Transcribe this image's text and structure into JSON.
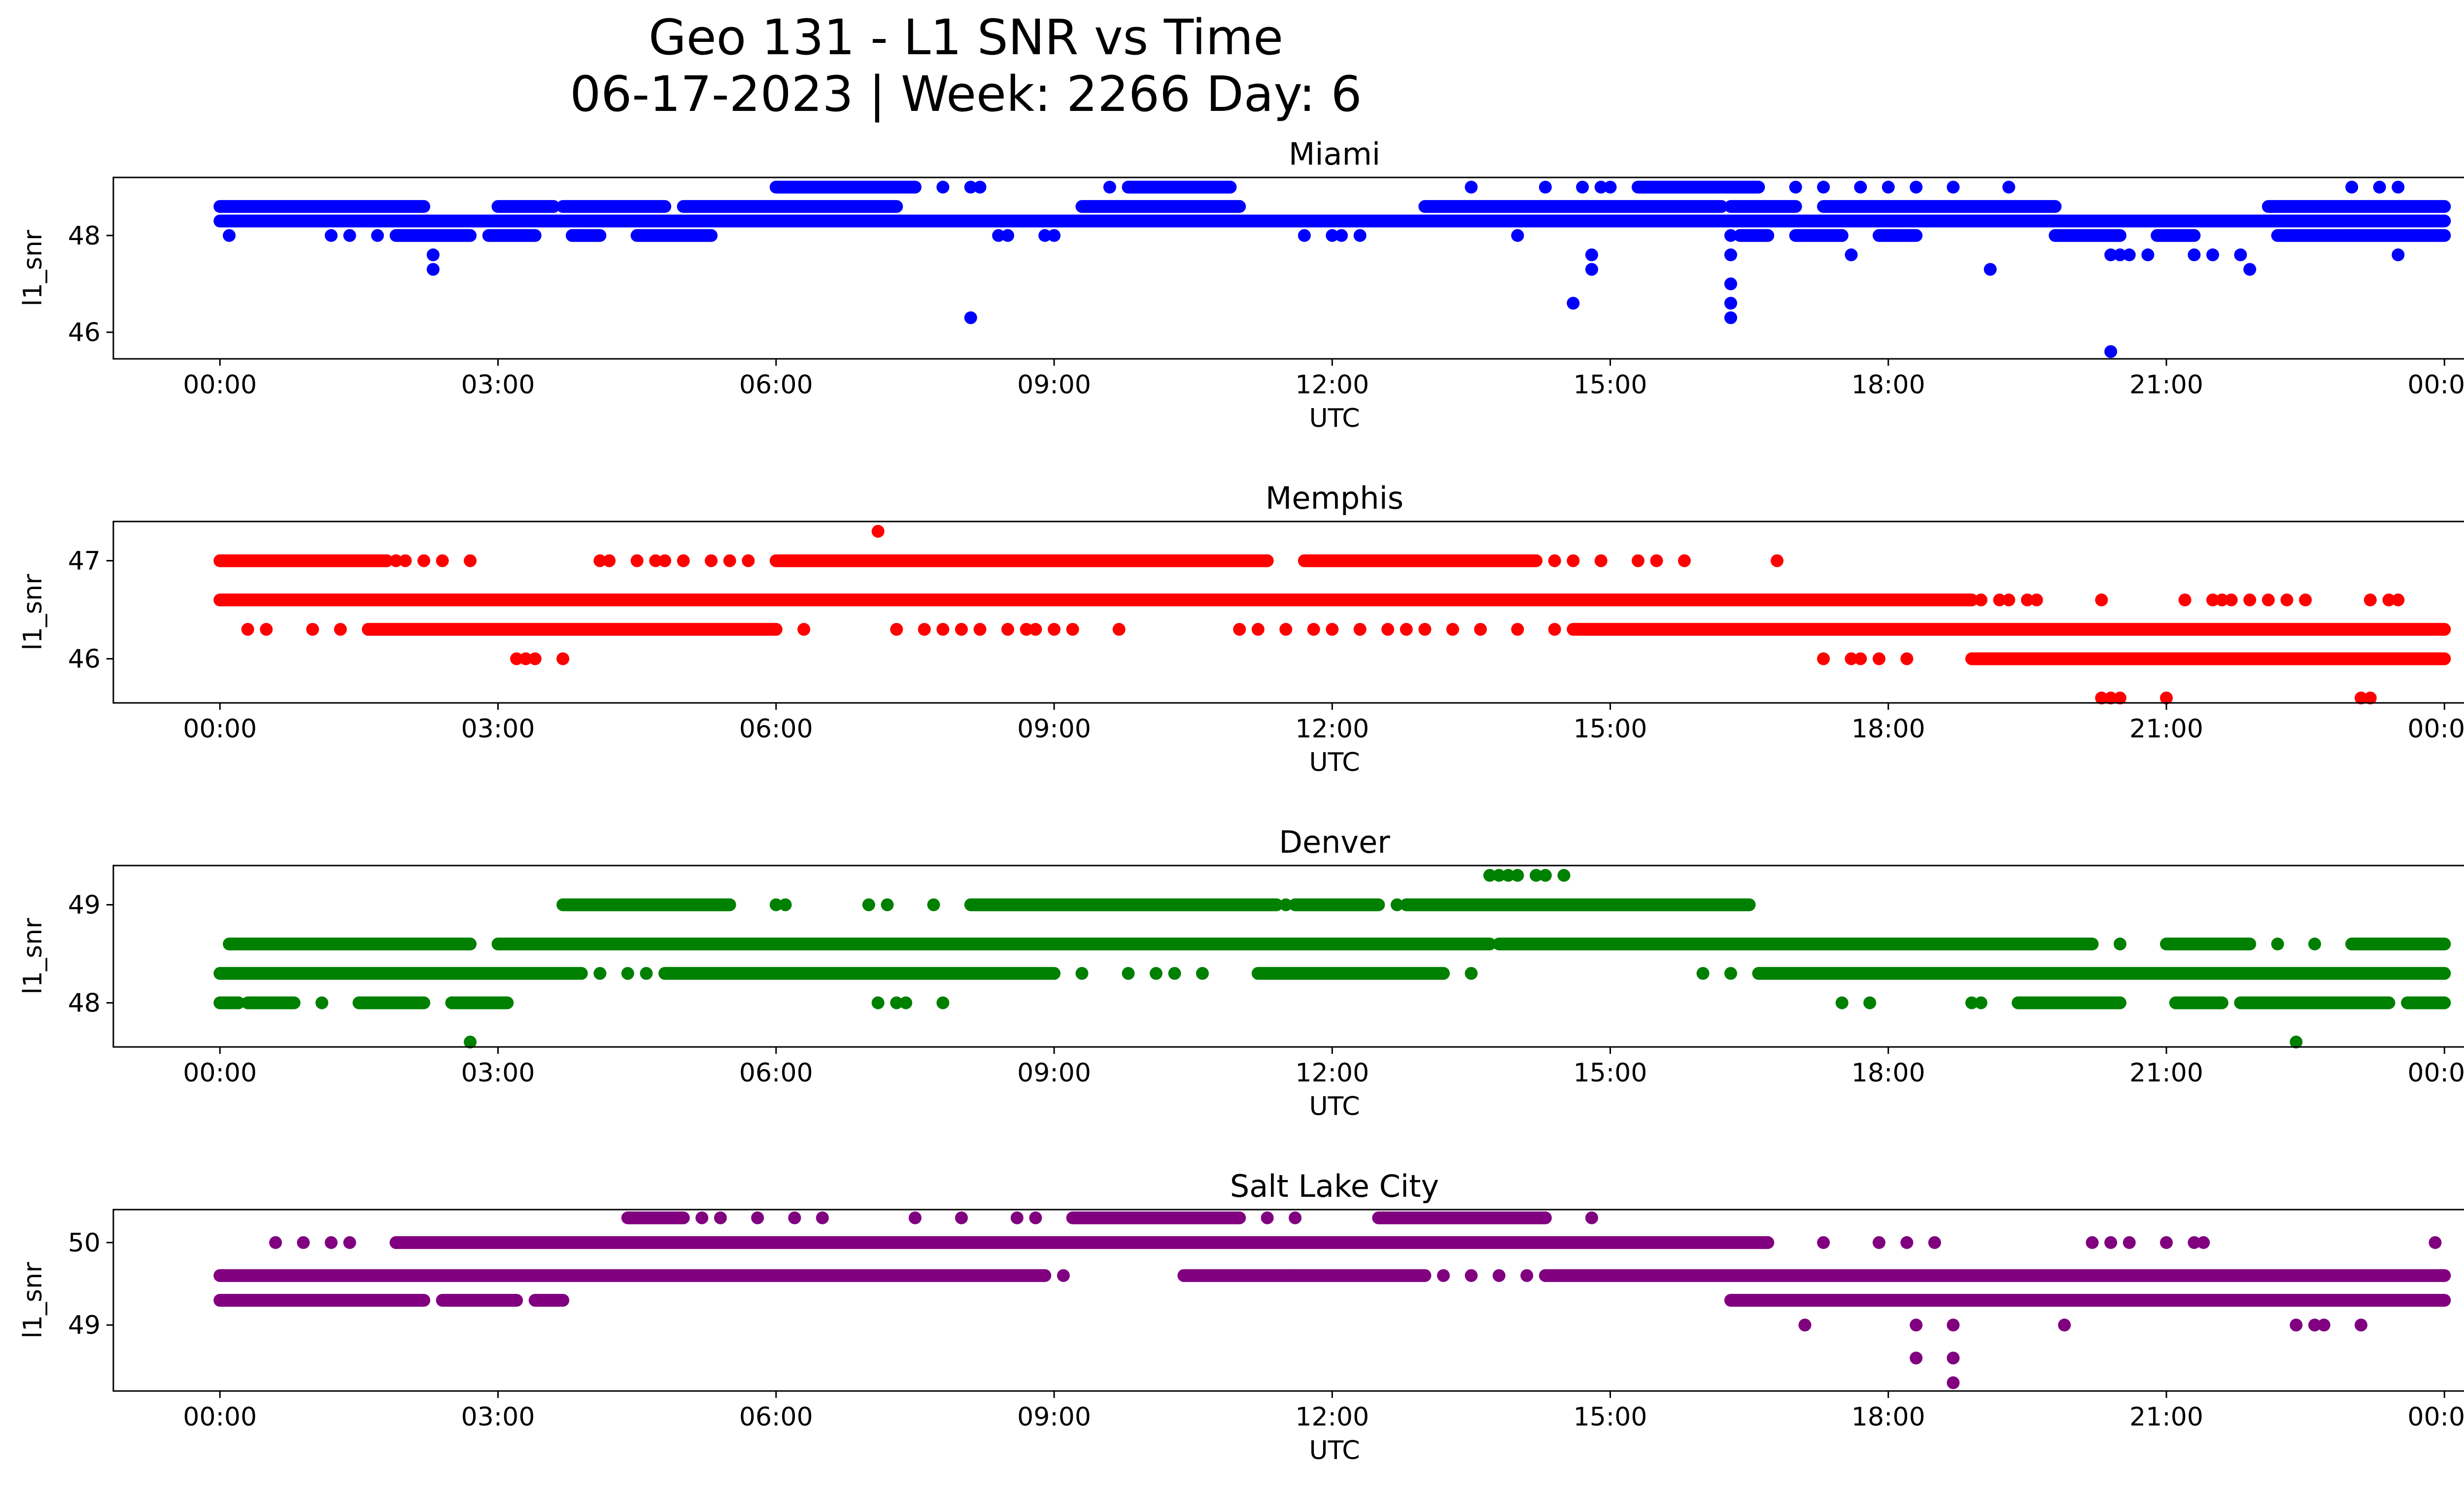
{
  "figure": {
    "title_line1": "Geo 131 - L1 SNR vs Time",
    "title_line2": "06-17-2023 | Week: 2266 Day: 6"
  },
  "chart_data": [
    {
      "type": "scatter",
      "title": "Miami",
      "xlabel": "UTC",
      "ylabel": "l1_snr",
      "color": "#0000ff",
      "xlim_hours": [
        -1.15,
        25.2
      ],
      "ylim": [
        45.45,
        49.2
      ],
      "x_ticks": [
        "00:00",
        "03:00",
        "06:00",
        "09:00",
        "12:00",
        "15:00",
        "18:00",
        "21:00",
        "00:00"
      ],
      "y_ticks": [
        46,
        48
      ],
      "bands": [
        {
          "y": 48.3,
          "segments": [
            [
              0.0,
              24.0
            ]
          ]
        },
        {
          "y": 48.6,
          "segments": [
            [
              0.0,
              2.2
            ],
            [
              3.0,
              3.6
            ],
            [
              3.7,
              4.8
            ],
            [
              5.0,
              6.2
            ],
            [
              6.2,
              7.3
            ],
            [
              9.3,
              11.0
            ],
            [
              13.0,
              16.2
            ],
            [
              16.3,
              17.0
            ],
            [
              17.3,
              19.8
            ],
            [
              22.1,
              24.0
            ]
          ]
        },
        {
          "y": 48.0,
          "segments": [
            [
              1.9,
              2.7
            ],
            [
              2.9,
              3.4
            ],
            [
              3.8,
              4.1
            ],
            [
              4.5,
              5.3
            ],
            [
              16.4,
              16.7
            ],
            [
              17.0,
              17.5
            ],
            [
              17.9,
              18.3
            ],
            [
              19.8,
              20.5
            ],
            [
              20.9,
              21.3
            ],
            [
              22.2,
              24.0
            ]
          ]
        },
        {
          "y": 49.0,
          "segments": [
            [
              6.0,
              7.5
            ],
            [
              9.8,
              10.9
            ],
            [
              15.3,
              16.6
            ]
          ]
        }
      ],
      "points": [
        [
          0.1,
          48.0
        ],
        [
          1.2,
          48.0
        ],
        [
          1.4,
          48.0
        ],
        [
          1.7,
          48.0
        ],
        [
          3.3,
          48.0
        ],
        [
          3.9,
          48.0
        ],
        [
          8.4,
          48.0
        ],
        [
          8.5,
          48.0
        ],
        [
          8.9,
          48.0
        ],
        [
          9.0,
          48.0
        ],
        [
          11.7,
          48.0
        ],
        [
          12.0,
          48.0
        ],
        [
          12.1,
          48.0
        ],
        [
          12.3,
          48.0
        ],
        [
          14.0,
          48.0
        ],
        [
          16.3,
          48.0
        ],
        [
          17.5,
          48.0
        ],
        [
          18.0,
          48.0
        ],
        [
          23.7,
          48.0
        ],
        [
          23.0,
          48.0
        ],
        [
          2.3,
          47.6
        ],
        [
          2.3,
          47.3
        ],
        [
          8.1,
          46.3
        ],
        [
          14.6,
          46.6
        ],
        [
          14.8,
          47.6
        ],
        [
          14.8,
          47.3
        ],
        [
          16.3,
          47.6
        ],
        [
          16.3,
          47.0
        ],
        [
          16.3,
          46.6
        ],
        [
          16.3,
          46.3
        ],
        [
          17.6,
          47.6
        ],
        [
          19.1,
          47.3
        ],
        [
          20.4,
          47.6
        ],
        [
          20.5,
          47.6
        ],
        [
          20.6,
          47.6
        ],
        [
          20.8,
          47.6
        ],
        [
          21.3,
          47.6
        ],
        [
          21.5,
          47.6
        ],
        [
          21.8,
          47.6
        ],
        [
          21.9,
          47.3
        ],
        [
          23.5,
          47.6
        ],
        [
          20.4,
          45.6
        ],
        [
          7.8,
          49.0
        ],
        [
          8.1,
          49.0
        ],
        [
          8.2,
          49.0
        ],
        [
          9.6,
          49.0
        ],
        [
          13.5,
          49.0
        ],
        [
          14.3,
          49.0
        ],
        [
          14.7,
          49.0
        ],
        [
          14.9,
          49.0
        ],
        [
          15.0,
          49.0
        ],
        [
          17.0,
          49.0
        ],
        [
          17.3,
          49.0
        ],
        [
          17.7,
          49.0
        ],
        [
          18.0,
          49.0
        ],
        [
          18.3,
          49.0
        ],
        [
          18.7,
          49.0
        ],
        [
          19.3,
          49.0
        ],
        [
          23.0,
          49.0
        ],
        [
          23.3,
          49.0
        ],
        [
          23.5,
          49.0
        ]
      ]
    },
    {
      "type": "scatter",
      "title": "Memphis",
      "xlabel": "UTC",
      "ylabel": "l1_snr",
      "color": "#ff0000",
      "xlim_hours": [
        -1.15,
        25.2
      ],
      "ylim": [
        45.55,
        47.4
      ],
      "x_ticks": [
        "00:00",
        "03:00",
        "06:00",
        "09:00",
        "12:00",
        "15:00",
        "18:00",
        "21:00",
        "00:00"
      ],
      "y_ticks": [
        46,
        47
      ],
      "bands": [
        {
          "y": 46.6,
          "segments": [
            [
              0.0,
              18.9
            ]
          ]
        },
        {
          "y": 47.0,
          "segments": [
            [
              0.0,
              1.8
            ],
            [
              6.0,
              11.3
            ],
            [
              11.7,
              14.2
            ]
          ]
        },
        {
          "y": 46.3,
          "segments": [
            [
              1.6,
              6.0
            ],
            [
              14.6,
              24.0
            ]
          ]
        },
        {
          "y": 46.0,
          "segments": [
            [
              18.9,
              24.0
            ]
          ]
        }
      ],
      "points": [
        [
          1.9,
          47.0
        ],
        [
          2.0,
          47.0
        ],
        [
          2.2,
          47.0
        ],
        [
          2.4,
          47.0
        ],
        [
          2.7,
          47.0
        ],
        [
          4.1,
          47.0
        ],
        [
          4.2,
          47.0
        ],
        [
          4.5,
          47.0
        ],
        [
          4.7,
          47.0
        ],
        [
          4.8,
          47.0
        ],
        [
          5.0,
          47.0
        ],
        [
          5.3,
          47.0
        ],
        [
          5.5,
          47.0
        ],
        [
          5.7,
          47.0
        ],
        [
          14.4,
          47.0
        ],
        [
          14.6,
          47.0
        ],
        [
          14.9,
          47.0
        ],
        [
          15.3,
          47.0
        ],
        [
          15.5,
          47.0
        ],
        [
          15.8,
          47.0
        ],
        [
          16.8,
          47.0
        ],
        [
          7.1,
          47.3
        ],
        [
          0.3,
          46.3
        ],
        [
          0.5,
          46.3
        ],
        [
          1.0,
          46.3
        ],
        [
          1.3,
          46.3
        ],
        [
          6.3,
          46.3
        ],
        [
          7.3,
          46.3
        ],
        [
          7.6,
          46.3
        ],
        [
          7.8,
          46.3
        ],
        [
          8.0,
          46.3
        ],
        [
          8.2,
          46.3
        ],
        [
          8.5,
          46.3
        ],
        [
          8.7,
          46.3
        ],
        [
          8.8,
          46.3
        ],
        [
          9.0,
          46.3
        ],
        [
          9.2,
          46.3
        ],
        [
          9.7,
          46.3
        ],
        [
          11.0,
          46.3
        ],
        [
          11.2,
          46.3
        ],
        [
          11.5,
          46.3
        ],
        [
          11.8,
          46.3
        ],
        [
          12.0,
          46.3
        ],
        [
          12.3,
          46.3
        ],
        [
          12.6,
          46.3
        ],
        [
          12.8,
          46.3
        ],
        [
          13.0,
          46.3
        ],
        [
          13.3,
          46.3
        ],
        [
          13.6,
          46.3
        ],
        [
          14.0,
          46.3
        ],
        [
          14.4,
          46.3
        ],
        [
          3.2,
          46.0
        ],
        [
          3.3,
          46.0
        ],
        [
          3.4,
          46.0
        ],
        [
          3.7,
          46.0
        ],
        [
          17.3,
          46.0
        ],
        [
          17.6,
          46.0
        ],
        [
          17.7,
          46.0
        ],
        [
          17.9,
          46.0
        ],
        [
          18.2,
          46.0
        ],
        [
          19.0,
          46.6
        ],
        [
          19.2,
          46.6
        ],
        [
          19.3,
          46.6
        ],
        [
          19.5,
          46.6
        ],
        [
          19.6,
          46.6
        ],
        [
          20.3,
          46.6
        ],
        [
          21.2,
          46.6
        ],
        [
          21.5,
          46.6
        ],
        [
          21.6,
          46.6
        ],
        [
          21.7,
          46.6
        ],
        [
          21.9,
          46.6
        ],
        [
          22.1,
          46.6
        ],
        [
          22.3,
          46.6
        ],
        [
          22.5,
          46.6
        ],
        [
          23.2,
          46.6
        ],
        [
          23.4,
          46.6
        ],
        [
          23.5,
          46.6
        ],
        [
          20.3,
          45.6
        ],
        [
          20.4,
          45.6
        ],
        [
          20.5,
          45.6
        ],
        [
          21.0,
          45.6
        ],
        [
          23.1,
          45.6
        ],
        [
          23.2,
          45.6
        ]
      ]
    },
    {
      "type": "scatter",
      "title": "Denver",
      "xlabel": "UTC",
      "ylabel": "l1_snr",
      "color": "#008000",
      "xlim_hours": [
        -1.15,
        25.2
      ],
      "ylim": [
        47.55,
        49.4
      ],
      "x_ticks": [
        "00:00",
        "03:00",
        "06:00",
        "09:00",
        "12:00",
        "15:00",
        "18:00",
        "21:00",
        "00:00"
      ],
      "y_ticks": [
        48,
        49
      ],
      "bands": [
        {
          "y": 48.6,
          "segments": [
            [
              0.1,
              2.7
            ],
            [
              3.0,
              13.7
            ],
            [
              13.8,
              20.2
            ],
            [
              21.0,
              21.9
            ],
            [
              23.0,
              24.0
            ]
          ]
        },
        {
          "y": 48.3,
          "segments": [
            [
              0.0,
              3.9
            ],
            [
              4.8,
              9.0
            ],
            [
              11.2,
              13.2
            ],
            [
              16.6,
              24.0
            ]
          ]
        },
        {
          "y": 49.0,
          "segments": [
            [
              3.7,
              5.5
            ],
            [
              8.1,
              11.4
            ],
            [
              11.6,
              12.5
            ],
            [
              12.8,
              16.5
            ]
          ]
        },
        {
          "y": 48.0,
          "segments": [
            [
              0.0,
              0.2
            ],
            [
              0.3,
              0.8
            ],
            [
              1.5,
              2.2
            ],
            [
              2.5,
              3.1
            ],
            [
              19.4,
              20.5
            ],
            [
              21.1,
              21.6
            ],
            [
              21.8,
              22.4
            ],
            [
              22.4,
              23.4
            ],
            [
              23.6,
              24.0
            ]
          ]
        }
      ],
      "points": [
        [
          1.1,
          48.0
        ],
        [
          7.1,
          48.0
        ],
        [
          7.3,
          48.0
        ],
        [
          7.4,
          48.0
        ],
        [
          7.8,
          48.0
        ],
        [
          17.5,
          48.0
        ],
        [
          17.8,
          48.0
        ],
        [
          18.9,
          48.0
        ],
        [
          19.0,
          48.0
        ],
        [
          2.7,
          47.6
        ],
        [
          22.4,
          47.6
        ],
        [
          4.1,
          48.3
        ],
        [
          4.4,
          48.3
        ],
        [
          4.6,
          48.3
        ],
        [
          9.3,
          48.3
        ],
        [
          9.8,
          48.3
        ],
        [
          10.1,
          48.3
        ],
        [
          10.3,
          48.3
        ],
        [
          10.6,
          48.3
        ],
        [
          13.5,
          48.3
        ],
        [
          16.0,
          48.3
        ],
        [
          16.3,
          48.3
        ],
        [
          6.0,
          49.0
        ],
        [
          6.1,
          49.0
        ],
        [
          7.0,
          49.0
        ],
        [
          7.2,
          49.0
        ],
        [
          7.7,
          49.0
        ],
        [
          11.5,
          49.0
        ],
        [
          12.7,
          49.0
        ],
        [
          20.5,
          48.6
        ],
        [
          22.2,
          48.6
        ],
        [
          22.6,
          48.6
        ],
        [
          13.7,
          49.3
        ],
        [
          13.8,
          49.3
        ],
        [
          13.9,
          49.3
        ],
        [
          14.0,
          49.3
        ],
        [
          14.2,
          49.3
        ],
        [
          14.3,
          49.3
        ],
        [
          14.5,
          49.3
        ]
      ]
    },
    {
      "type": "scatter",
      "title": "Salt Lake City",
      "xlabel": "UTC",
      "ylabel": "l1_snr",
      "color": "#800080",
      "xlim_hours": [
        -1.15,
        25.2
      ],
      "ylim": [
        48.2,
        50.4
      ],
      "x_ticks": [
        "00:00",
        "03:00",
        "06:00",
        "09:00",
        "12:00",
        "15:00",
        "18:00",
        "21:00",
        "00:00"
      ],
      "y_ticks": [
        49,
        50
      ],
      "bands": [
        {
          "y": 49.6,
          "segments": [
            [
              0.0,
              8.9
            ],
            [
              10.4,
              13.0
            ],
            [
              14.3,
              24.0
            ]
          ]
        },
        {
          "y": 49.3,
          "segments": [
            [
              0.0,
              2.2
            ],
            [
              2.4,
              3.2
            ],
            [
              3.4,
              3.7
            ],
            [
              16.3,
              24.0
            ]
          ]
        },
        {
          "y": 50.0,
          "segments": [
            [
              1.9,
              16.7
            ]
          ]
        },
        {
          "y": 50.3,
          "segments": [
            [
              4.4,
              5.0
            ],
            [
              9.2,
              11.0
            ],
            [
              12.5,
              14.3
            ]
          ]
        }
      ],
      "points": [
        [
          0.6,
          50.0
        ],
        [
          0.9,
          50.0
        ],
        [
          1.2,
          50.0
        ],
        [
          1.4,
          50.0
        ],
        [
          1.9,
          50.0
        ],
        [
          17.3,
          50.0
        ],
        [
          17.9,
          50.0
        ],
        [
          18.2,
          50.0
        ],
        [
          18.5,
          50.0
        ],
        [
          20.2,
          50.0
        ],
        [
          20.4,
          50.0
        ],
        [
          20.6,
          50.0
        ],
        [
          21.0,
          50.0
        ],
        [
          21.3,
          50.0
        ],
        [
          21.4,
          50.0
        ],
        [
          23.9,
          50.0
        ],
        [
          5.2,
          50.3
        ],
        [
          5.4,
          50.3
        ],
        [
          5.8,
          50.3
        ],
        [
          6.2,
          50.3
        ],
        [
          6.5,
          50.3
        ],
        [
          7.5,
          50.3
        ],
        [
          8.0,
          50.3
        ],
        [
          8.6,
          50.3
        ],
        [
          8.8,
          50.3
        ],
        [
          11.3,
          50.3
        ],
        [
          11.6,
          50.3
        ],
        [
          14.8,
          50.3
        ],
        [
          9.1,
          49.6
        ],
        [
          11.6,
          49.6
        ],
        [
          13.2,
          49.6
        ],
        [
          13.5,
          49.6
        ],
        [
          13.8,
          49.6
        ],
        [
          14.1,
          49.6
        ],
        [
          17.1,
          49.0
        ],
        [
          18.3,
          49.0
        ],
        [
          18.7,
          49.0
        ],
        [
          19.9,
          49.0
        ],
        [
          22.4,
          49.0
        ],
        [
          22.6,
          49.0
        ],
        [
          22.7,
          49.0
        ],
        [
          23.1,
          49.0
        ],
        [
          18.3,
          48.6
        ],
        [
          18.7,
          48.6
        ],
        [
          18.7,
          48.3
        ]
      ]
    }
  ]
}
